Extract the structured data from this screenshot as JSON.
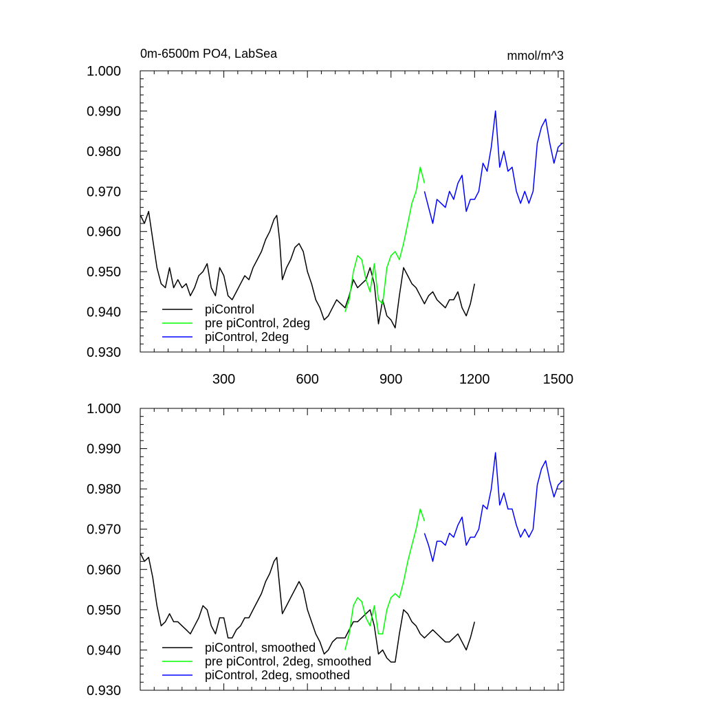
{
  "chart_data": [
    {
      "type": "line",
      "title": "0m-6500m PO4, LabSea",
      "units": "mmol/m^3",
      "xlim": [
        0,
        1520
      ],
      "ylim": [
        0.93,
        1.0
      ],
      "x_tick_labels": [
        "300",
        "600",
        "900",
        "1200",
        "1500"
      ],
      "x_tick_values": [
        300,
        600,
        900,
        1200,
        1500
      ],
      "y_tick_labels": [
        "0.930",
        "0.940",
        "0.950",
        "0.960",
        "0.970",
        "0.980",
        "0.990",
        "1.000"
      ],
      "y_tick_values": [
        0.93,
        0.94,
        0.95,
        0.96,
        0.97,
        0.98,
        0.99,
        1.0
      ],
      "legend_position": "bottom-left",
      "series": [
        {
          "name": "piControl",
          "color": "#000000",
          "x": [
            1,
            15,
            30,
            45,
            60,
            75,
            90,
            105,
            120,
            135,
            150,
            165,
            180,
            195,
            210,
            225,
            240,
            255,
            270,
            285,
            300,
            315,
            330,
            345,
            360,
            375,
            390,
            405,
            420,
            435,
            450,
            465,
            480,
            490,
            500,
            510,
            525,
            540,
            555,
            570,
            585,
            600,
            615,
            630,
            645,
            660,
            675,
            690,
            705,
            720,
            735,
            750,
            765,
            780,
            795,
            810,
            825,
            840,
            855,
            870,
            885,
            900,
            915,
            930,
            945,
            960,
            975,
            990,
            1005,
            1020,
            1035,
            1050,
            1065,
            1080,
            1095,
            1110,
            1125,
            1140,
            1155,
            1170,
            1185,
            1200
          ],
          "values": [
            0.964,
            0.962,
            0.965,
            0.958,
            0.951,
            0.947,
            0.946,
            0.951,
            0.946,
            0.948,
            0.946,
            0.947,
            0.944,
            0.946,
            0.949,
            0.95,
            0.952,
            0.946,
            0.944,
            0.951,
            0.949,
            0.944,
            0.943,
            0.945,
            0.947,
            0.949,
            0.948,
            0.951,
            0.953,
            0.955,
            0.958,
            0.96,
            0.963,
            0.964,
            0.958,
            0.948,
            0.951,
            0.953,
            0.956,
            0.957,
            0.955,
            0.95,
            0.947,
            0.943,
            0.941,
            0.938,
            0.939,
            0.941,
            0.943,
            0.942,
            0.941,
            0.944,
            0.948,
            0.946,
            0.947,
            0.948,
            0.951,
            0.947,
            0.937,
            0.943,
            0.939,
            0.938,
            0.936,
            0.944,
            0.951,
            0.949,
            0.947,
            0.946,
            0.944,
            0.942,
            0.944,
            0.945,
            0.943,
            0.942,
            0.941,
            0.943,
            0.943,
            0.945,
            0.941,
            0.939,
            0.942,
            0.947
          ]
        },
        {
          "name": "pre piControl, 2deg",
          "color": "#00ff00",
          "x": [
            735,
            750,
            765,
            780,
            795,
            810,
            825,
            840,
            855,
            870,
            885,
            900,
            915,
            930,
            945,
            960,
            975,
            990,
            1005,
            1020
          ],
          "values": [
            0.94,
            0.943,
            0.95,
            0.954,
            0.953,
            0.948,
            0.945,
            0.952,
            0.943,
            0.942,
            0.951,
            0.954,
            0.955,
            0.953,
            0.957,
            0.962,
            0.967,
            0.97,
            0.976,
            0.972
          ]
        },
        {
          "name": "piControl, 2deg",
          "color": "#0000ff",
          "x": [
            1020,
            1035,
            1050,
            1065,
            1080,
            1095,
            1110,
            1125,
            1140,
            1155,
            1170,
            1185,
            1200,
            1215,
            1230,
            1245,
            1260,
            1275,
            1290,
            1305,
            1320,
            1335,
            1350,
            1365,
            1380,
            1395,
            1410,
            1425,
            1440,
            1455,
            1470,
            1485,
            1500,
            1515
          ],
          "values": [
            0.97,
            0.966,
            0.962,
            0.968,
            0.967,
            0.966,
            0.97,
            0.968,
            0.972,
            0.974,
            0.965,
            0.968,
            0.968,
            0.97,
            0.977,
            0.975,
            0.981,
            0.99,
            0.976,
            0.98,
            0.975,
            0.976,
            0.97,
            0.967,
            0.97,
            0.967,
            0.97,
            0.982,
            0.986,
            0.988,
            0.982,
            0.977,
            0.981,
            0.982
          ]
        }
      ]
    },
    {
      "type": "line",
      "title": "",
      "units": "",
      "xlim": [
        0,
        1520
      ],
      "ylim": [
        0.93,
        1.0
      ],
      "x_tick_labels": [],
      "x_tick_values": [
        300,
        600,
        900,
        1200,
        1500
      ],
      "y_tick_labels": [
        "0.930",
        "0.940",
        "0.950",
        "0.960",
        "0.970",
        "0.980",
        "0.990",
        "1.000"
      ],
      "y_tick_values": [
        0.93,
        0.94,
        0.95,
        0.96,
        0.97,
        0.98,
        0.99,
        1.0
      ],
      "legend_position": "bottom-left",
      "series": [
        {
          "name": "piControl, smoothed",
          "color": "#000000",
          "x": [
            1,
            15,
            30,
            45,
            60,
            75,
            90,
            105,
            120,
            135,
            150,
            165,
            180,
            195,
            210,
            225,
            240,
            255,
            270,
            285,
            300,
            315,
            330,
            345,
            360,
            375,
            390,
            405,
            420,
            435,
            450,
            465,
            480,
            490,
            500,
            510,
            525,
            540,
            555,
            570,
            585,
            600,
            615,
            630,
            645,
            660,
            675,
            690,
            705,
            720,
            735,
            750,
            765,
            780,
            795,
            810,
            825,
            840,
            855,
            870,
            885,
            900,
            915,
            930,
            945,
            960,
            975,
            990,
            1005,
            1020,
            1035,
            1050,
            1065,
            1080,
            1095,
            1110,
            1125,
            1140,
            1155,
            1170,
            1185,
            1200
          ],
          "values": [
            0.964,
            0.962,
            0.963,
            0.958,
            0.951,
            0.946,
            0.947,
            0.949,
            0.947,
            0.947,
            0.946,
            0.945,
            0.944,
            0.946,
            0.948,
            0.951,
            0.95,
            0.946,
            0.944,
            0.948,
            0.948,
            0.943,
            0.943,
            0.945,
            0.946,
            0.948,
            0.948,
            0.95,
            0.952,
            0.954,
            0.957,
            0.959,
            0.962,
            0.963,
            0.956,
            0.949,
            0.951,
            0.953,
            0.955,
            0.957,
            0.955,
            0.95,
            0.947,
            0.944,
            0.942,
            0.939,
            0.94,
            0.942,
            0.943,
            0.943,
            0.943,
            0.945,
            0.947,
            0.947,
            0.948,
            0.949,
            0.95,
            0.946,
            0.939,
            0.94,
            0.938,
            0.937,
            0.937,
            0.944,
            0.95,
            0.949,
            0.947,
            0.946,
            0.944,
            0.943,
            0.944,
            0.945,
            0.944,
            0.943,
            0.942,
            0.942,
            0.943,
            0.944,
            0.942,
            0.94,
            0.943,
            0.947
          ]
        },
        {
          "name": "pre piControl, 2deg, smoothed",
          "color": "#00ff00",
          "x": [
            735,
            750,
            765,
            780,
            795,
            810,
            825,
            840,
            855,
            870,
            885,
            900,
            915,
            930,
            945,
            960,
            975,
            990,
            1005,
            1020
          ],
          "values": [
            0.94,
            0.944,
            0.951,
            0.953,
            0.952,
            0.948,
            0.946,
            0.951,
            0.944,
            0.944,
            0.95,
            0.953,
            0.954,
            0.953,
            0.957,
            0.962,
            0.966,
            0.97,
            0.975,
            0.972
          ]
        },
        {
          "name": "piControl, 2deg, smoothed",
          "color": "#0000ff",
          "x": [
            1020,
            1035,
            1050,
            1065,
            1080,
            1095,
            1110,
            1125,
            1140,
            1155,
            1170,
            1185,
            1200,
            1215,
            1230,
            1245,
            1260,
            1275,
            1290,
            1305,
            1320,
            1335,
            1350,
            1365,
            1380,
            1395,
            1410,
            1425,
            1440,
            1455,
            1470,
            1485,
            1500,
            1515
          ],
          "values": [
            0.969,
            0.966,
            0.962,
            0.967,
            0.967,
            0.966,
            0.969,
            0.968,
            0.971,
            0.973,
            0.966,
            0.968,
            0.968,
            0.97,
            0.976,
            0.975,
            0.98,
            0.989,
            0.976,
            0.979,
            0.975,
            0.975,
            0.971,
            0.968,
            0.97,
            0.968,
            0.97,
            0.981,
            0.985,
            0.987,
            0.982,
            0.978,
            0.981,
            0.982
          ]
        }
      ]
    }
  ]
}
